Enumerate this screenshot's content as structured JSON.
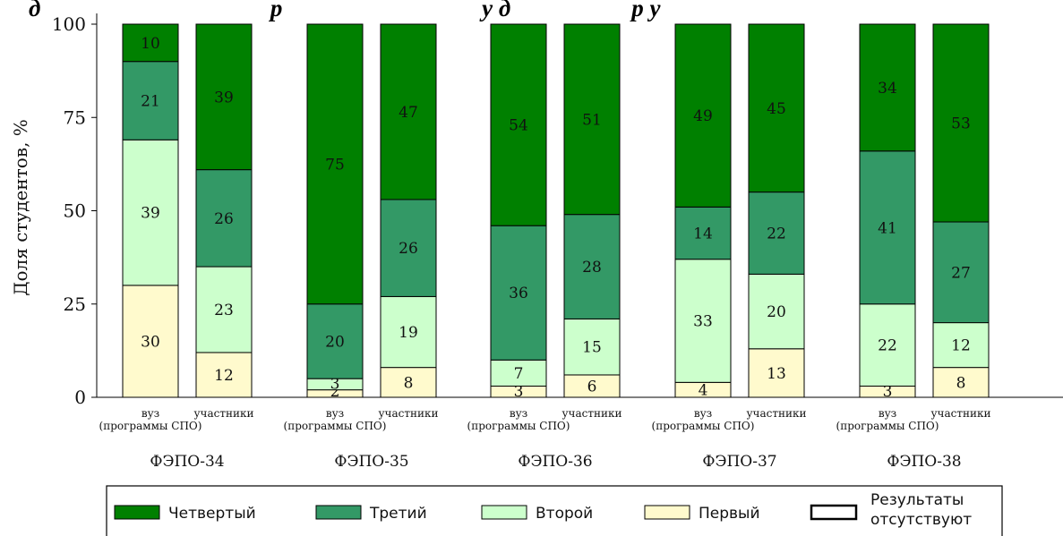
{
  "chart_data": {
    "type": "bar",
    "stacked": true,
    "title": "...о результатах ФЭПО: вуз (программы СПО) и все участники (по группам)",
    "title_visible": "д                                      р                                 у д                    р у",
    "ylabel": "Доля студентов, %",
    "ylim": [
      0,
      100
    ],
    "yticks": [
      0,
      25,
      50,
      75,
      100
    ],
    "grid": false,
    "legend_position": "bottom",
    "categories": [
      {
        "group": "ФЭПО-34",
        "line1": "вуз",
        "line2": "(программы СПО)"
      },
      {
        "group": "ФЭПО-34",
        "line1": "участники",
        "line2": ""
      },
      {
        "group": "ФЭПО-35",
        "line1": "вуз",
        "line2": "(программы СПО)"
      },
      {
        "group": "ФЭПО-35",
        "line1": "участники",
        "line2": ""
      },
      {
        "group": "ФЭПО-36",
        "line1": "вуз",
        "line2": "(программы СПО)"
      },
      {
        "group": "ФЭПО-36",
        "line1": "участники",
        "line2": ""
      },
      {
        "group": "ФЭПО-37",
        "line1": "вуз",
        "line2": "(программы СПО)"
      },
      {
        "group": "ФЭПО-37",
        "line1": "участники",
        "line2": ""
      },
      {
        "group": "ФЭПО-38",
        "line1": "вуз",
        "line2": "(программы СПО)"
      },
      {
        "group": "ФЭПО-38",
        "line1": "участники",
        "line2": ""
      }
    ],
    "groups": [
      "ФЭПО-34",
      "ФЭПО-35",
      "ФЭПО-36",
      "ФЭПО-37",
      "ФЭПО-38"
    ],
    "series": [
      {
        "name": "Первый",
        "color": "#fffacd",
        "values": [
          30,
          12,
          2,
          8,
          3,
          6,
          4,
          13,
          3,
          8
        ]
      },
      {
        "name": "Второй",
        "color": "#ccffcc",
        "values": [
          39,
          23,
          3,
          19,
          7,
          15,
          33,
          20,
          22,
          12
        ]
      },
      {
        "name": "Третий",
        "color": "#339966",
        "values": [
          21,
          26,
          20,
          26,
          36,
          28,
          14,
          22,
          41,
          27
        ]
      },
      {
        "name": "Четвертый",
        "color": "#008000",
        "values": [
          10,
          39,
          75,
          47,
          54,
          51,
          49,
          45,
          34,
          53
        ]
      }
    ],
    "legend": [
      {
        "label": "Четвертый",
        "color": "#008000"
      },
      {
        "label": "Третий",
        "color": "#339966"
      },
      {
        "label": "Второй",
        "color": "#ccffcc"
      },
      {
        "label": "Первый",
        "color": "#fffacd"
      },
      {
        "label": "Результаты отсутствуют",
        "line1": "Результаты",
        "line2": "отсутствуют",
        "color": "#ffffff"
      }
    ]
  }
}
